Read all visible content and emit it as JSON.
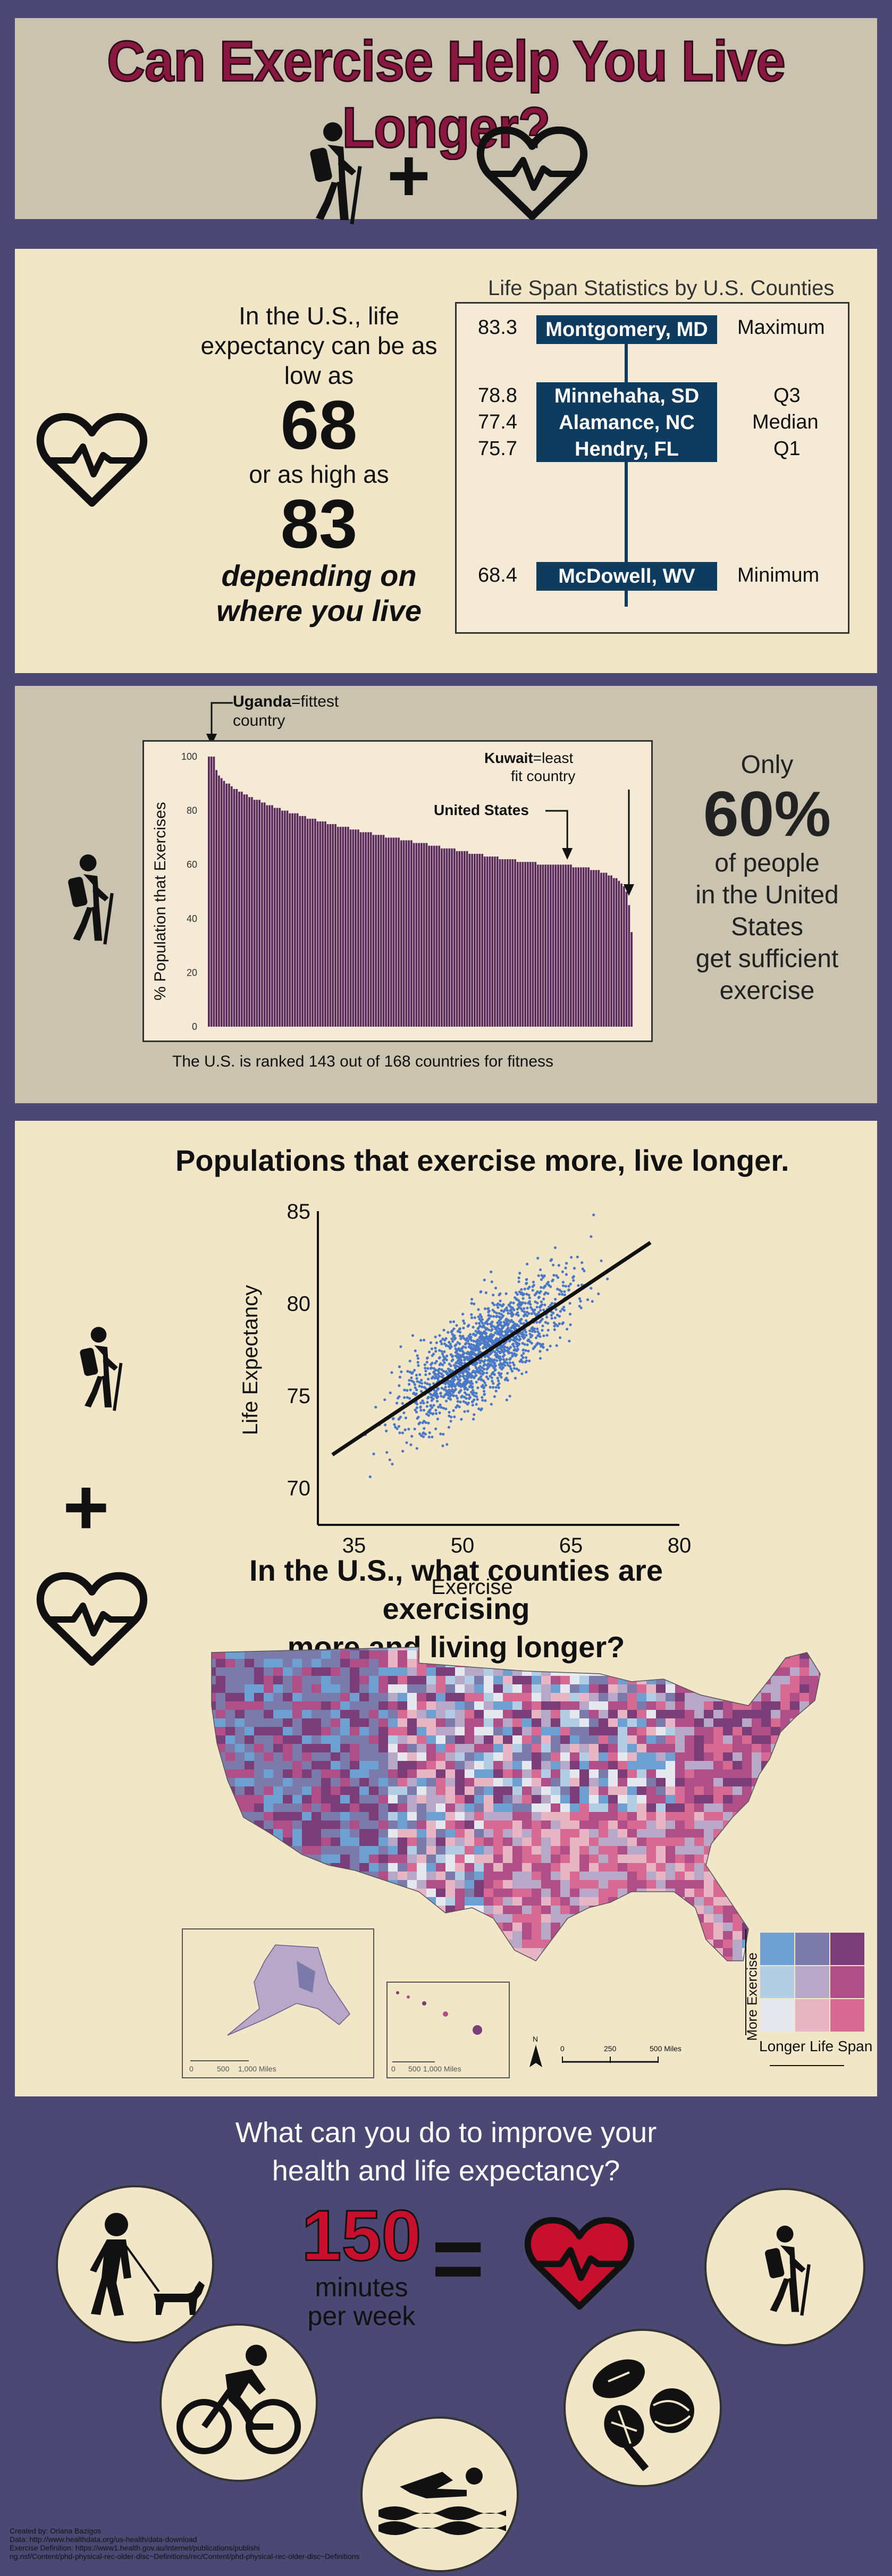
{
  "header": {
    "title": "Can Exercise Help You Live Longer?",
    "plus": "+"
  },
  "life_span": {
    "intro": [
      "In the U.S., life",
      "expectancy can be as",
      "low as"
    ],
    "low": "68",
    "mid": "or as high as",
    "high": "83",
    "depending": [
      "depending on",
      "where you live"
    ],
    "box_title": "Life Span Statistics by U.S. Counties",
    "rows": [
      {
        "value": "83.3",
        "county": "Montgomery, MD",
        "label": "Maximum"
      },
      {
        "value": "78.8",
        "county": "Minnehaha, SD",
        "label": "Q3"
      },
      {
        "value": "77.4",
        "county": "Alamance, NC",
        "label": "Median"
      },
      {
        "value": "75.7",
        "county": "Hendry, FL",
        "label": "Q1"
      },
      {
        "value": "68.4",
        "county": "McDowell, WV",
        "label": "Minimum"
      }
    ]
  },
  "fitness": {
    "callout_top": [
      "Uganda",
      "=fittest",
      "country"
    ],
    "callout_kuwait": [
      "Kuwait",
      "=least",
      "fit country"
    ],
    "callout_us": "United States",
    "ylabel": "% Population that Exercises",
    "yticks": [
      "100",
      "80",
      "60",
      "40",
      "20",
      "0"
    ],
    "caption": "The U.S. is ranked 143 out of 168 countries for fitness",
    "only": "Only",
    "pct": "60%",
    "rest": [
      "of people",
      "in the United",
      "States",
      "get sufficient",
      "exercise"
    ]
  },
  "chart_data": [
    {
      "type": "bar",
      "title": "",
      "ylabel": "% Population that Exercises",
      "ylim": [
        0,
        100
      ],
      "n_countries": 168,
      "values_descending_sample": [
        100,
        100,
        100,
        95,
        93,
        92,
        91,
        90,
        90,
        89,
        88,
        88,
        87,
        87,
        86,
        86,
        85,
        85,
        84,
        84,
        84,
        83,
        83,
        82,
        82,
        82,
        81,
        81,
        81,
        80,
        80,
        80,
        79,
        79,
        79,
        79,
        78,
        78,
        78,
        77,
        77,
        77,
        77,
        76,
        76,
        76,
        76,
        75,
        75,
        75,
        75,
        74,
        74,
        74,
        74,
        74,
        73,
        73,
        73,
        73,
        72,
        72,
        72,
        72,
        72,
        71,
        71,
        71,
        71,
        71,
        70,
        70,
        70,
        70,
        70,
        70,
        69,
        69,
        69,
        69,
        69,
        68,
        68,
        68,
        68,
        68,
        68,
        67,
        67,
        67,
        67,
        67,
        66,
        66,
        66,
        66,
        66,
        66,
        65,
        65,
        65,
        65,
        65,
        64,
        64,
        64,
        64,
        64,
        64,
        63,
        63,
        63,
        63,
        63,
        63,
        62,
        62,
        62,
        62,
        62,
        62,
        62,
        61,
        61,
        61,
        61,
        61,
        61,
        61,
        61,
        60,
        60,
        60,
        60,
        60,
        60,
        60,
        60,
        60,
        60,
        60,
        60,
        60,
        60,
        59,
        59,
        59,
        59,
        59,
        59,
        59,
        58,
        58,
        58,
        58,
        57,
        57,
        57,
        56,
        56,
        55,
        55,
        54,
        53,
        52,
        50,
        45,
        35
      ]
    },
    {
      "type": "scatter",
      "title": "Populations that exercise more, live longer.",
      "xlabel": "Exercise",
      "ylabel": "Life Expectancy",
      "xticks": [
        "35",
        "50",
        "65",
        "80"
      ],
      "yticks": [
        "85",
        "80",
        "75",
        "70"
      ],
      "xlim": [
        30,
        80
      ],
      "ylim": [
        68,
        85
      ],
      "trend_line": {
        "x": [
          32,
          76
        ],
        "y": [
          71.8,
          83.3
        ]
      },
      "point_color": "#4a78c9"
    }
  ],
  "scatter": {
    "title": "Populations that exercise more, live longer.",
    "xlabel": "Exercise",
    "ylabel": "Life Expectancy",
    "xticks": [
      "35",
      "50",
      "65",
      "80"
    ],
    "yticks": [
      "85",
      "80",
      "75",
      "70"
    ]
  },
  "map": {
    "title": [
      "In the U.S., what counties are exercising",
      "more and living longer?"
    ],
    "legend_y": "More Exercise",
    "legend_x": "Longer Life Span",
    "scale_labels": [
      "0",
      "250",
      "500 Miles"
    ],
    "alaska_scale": [
      "0",
      "500",
      "1,000 Miles"
    ],
    "hawaii_scale": [
      "0",
      "500",
      "1,000 Miles"
    ],
    "north": "N",
    "bivariate_colors": [
      "#6e9fd1",
      "#7b7aaa",
      "#7a3d77",
      "#b3cde4",
      "#b7a8c8",
      "#b04f87",
      "#e6e8ef",
      "#e8b5c5",
      "#d66a93"
    ],
    "plus": "+"
  },
  "improve": {
    "title": [
      "What can you do to improve your",
      "health and life expectancy?"
    ],
    "number": "150",
    "unit": [
      "minutes",
      "per week"
    ],
    "equals": "="
  },
  "footer": {
    "lines": [
      "Created by: Oriana Bazigos",
      "Data: http://www.healthdata.org/us-health/data-download",
      "Exercise Definition: https://www1.health.gov.au/internet/publications/publishi",
      "ng.nsf/Content/phd-physical-rec-older-disc~Definitions/rec/Content/phd-physical-rec-older-disc~Definitions"
    ]
  },
  "colors": {
    "bg": "#4b4874",
    "title_red": "#8a1740",
    "bar": "#5a2a5c",
    "navy": "#0f3c5e",
    "scatter": "#4a78c9",
    "heart_red": "#c8102e"
  }
}
